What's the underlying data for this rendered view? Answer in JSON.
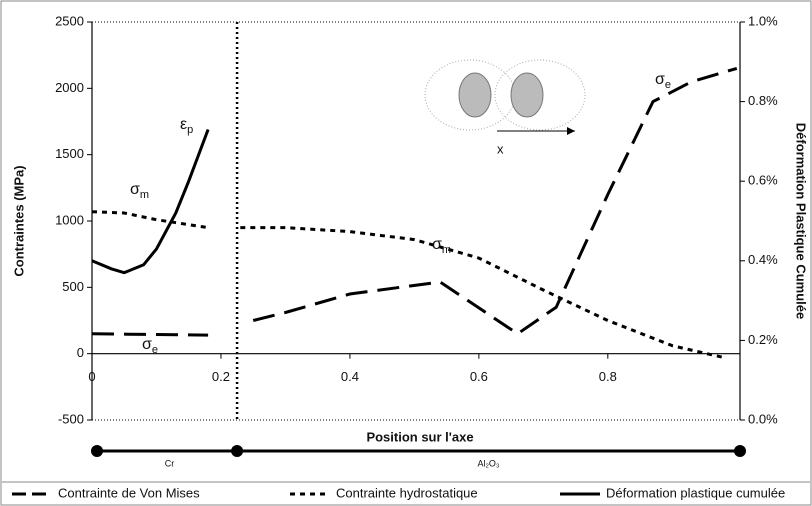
{
  "chart_data": {
    "type": "line",
    "xlabel": "Position sur l'axe",
    "ylabel": "Contraintes (MPa)",
    "y2label": "Déformation Plastique Cumulée",
    "xlim": [
      0,
      1.005
    ],
    "xticks": [
      0,
      0.2,
      0.4,
      0.6,
      0.8
    ],
    "ylim": [
      -500,
      2500
    ],
    "yticks": [
      -500,
      0,
      500,
      1000,
      1500,
      2000,
      2500
    ],
    "y2lim": [
      0,
      1.0
    ],
    "y2ticks": [
      {
        "value": 0,
        "label": "0.0%"
      },
      {
        "value": 0.2,
        "label": "0.2%"
      },
      {
        "value": 0.4,
        "label": "0.4%"
      },
      {
        "value": 0.6,
        "label": "0.6%"
      },
      {
        "value": 0.8,
        "label": "0.8%"
      },
      {
        "value": 1.0,
        "label": "1.0%"
      }
    ],
    "boundary_x": 0.225,
    "regions": [
      {
        "label": "Cr"
      },
      {
        "label": "Al₂O₃"
      }
    ],
    "inset_label": "x",
    "series": [
      {
        "name": "Contrainte de Von Mises",
        "color": "#000000",
        "dash": "dashed",
        "x": [
          0,
          0.18,
          null,
          0.25,
          0.3,
          0.4,
          0.54,
          0.66,
          0.72,
          0.8,
          0.87,
          0.93,
          1.0
        ],
        "values": [
          150,
          140,
          null,
          250,
          310,
          450,
          540,
          150,
          350,
          1200,
          1900,
          2050,
          2150
        ]
      },
      {
        "name": "Contrainte hydrostatique",
        "color": "#000000",
        "dash": "dotted",
        "x": [
          0,
          0.05,
          0.1,
          0.18,
          null,
          0.23,
          0.3,
          0.4,
          0.5,
          0.6,
          0.7,
          0.8,
          0.9,
          0.98
        ],
        "values": [
          1070,
          1060,
          1010,
          950,
          null,
          950,
          950,
          920,
          860,
          720,
          480,
          250,
          60,
          -30
        ]
      },
      {
        "name": "Déformation plastique cumulée",
        "color": "#000000",
        "dash": "solid",
        "axis": "y2",
        "x": [
          0,
          0.03,
          0.05,
          0.08,
          0.1,
          0.13,
          0.15,
          0.18
        ],
        "values": [
          0.4,
          0.38,
          0.37,
          0.39,
          0.43,
          0.52,
          0.6,
          0.73
        ]
      }
    ],
    "annotations": [
      {
        "text": "ε",
        "sub": "p"
      },
      {
        "text": "σ",
        "sub": "m"
      },
      {
        "text": "σ",
        "sub": "e"
      },
      {
        "text": "σ",
        "sub": "m"
      },
      {
        "text": "σ",
        "sub": "e"
      }
    ]
  }
}
